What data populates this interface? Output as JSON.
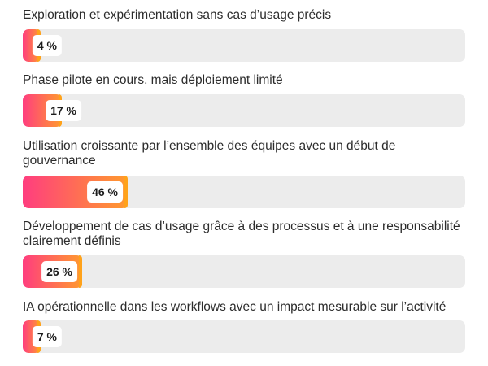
{
  "chart_data": {
    "type": "bar",
    "orientation": "horizontal",
    "categories": [
      "Exploration et expérimentation sans cas d’usage précis",
      "Phase pilote en cours, mais déploiement limité",
      "Utilisation croissante par l’ensemble des équipes avec un début de gouvernance",
      "Développement de cas d’usage grâce à des processus et à une responsabilité clairement définis",
      "IA opérationnelle dans les workflows avec un impact mesurable sur l’activité"
    ],
    "values": [
      4,
      17,
      46,
      26,
      7
    ],
    "value_labels": [
      "4 %",
      "17 %",
      "46 %",
      "26 %",
      "7 %"
    ],
    "xlim": [
      0,
      100
    ],
    "grid": false,
    "colors": {
      "gradient_start": "#ff3d7f",
      "gradient_mid": "#ff7a4a",
      "gradient_end": "#ff9a2e",
      "bar_end_accent": "#ffa21a",
      "track": "#ececec"
    }
  }
}
